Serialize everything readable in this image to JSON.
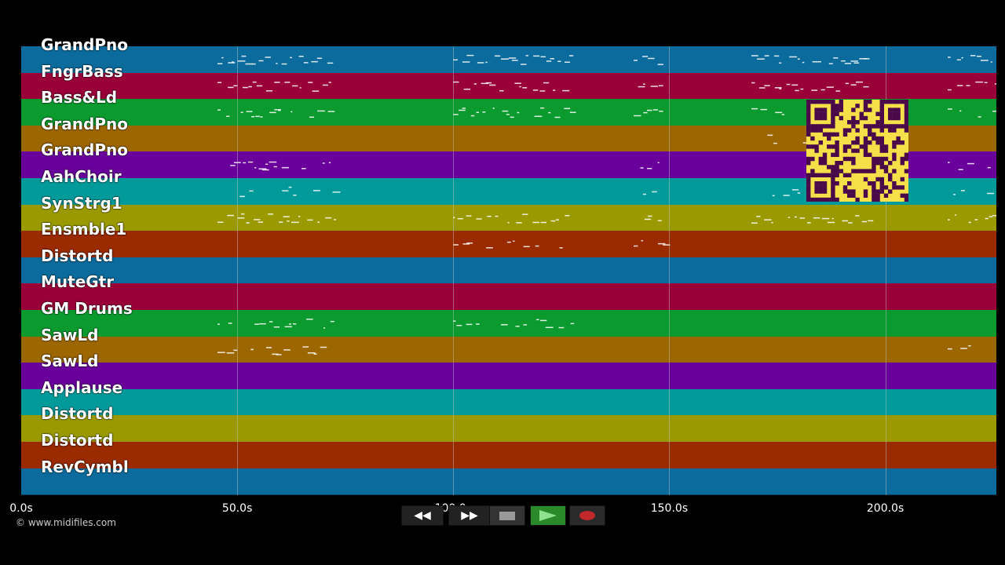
{
  "tracks": [
    {
      "name": "GrandPno",
      "color": "#0a6b9c"
    },
    {
      "name": "FngrBass",
      "color": "#9a0038"
    },
    {
      "name": "Bass&Ld",
      "color": "#0a9a2e"
    },
    {
      "name": "GrandPno",
      "color": "#9c6600"
    },
    {
      "name": "GrandPno",
      "color": "#6a009c"
    },
    {
      "name": "AahChoir",
      "color": "#009a9a"
    },
    {
      "name": "SynStrg1",
      "color": "#9a9a00"
    },
    {
      "name": "Ensmble1",
      "color": "#9a2a00"
    },
    {
      "name": "Distortd",
      "color": "#0a6b9c"
    },
    {
      "name": "MuteGtr",
      "color": "#9a0038"
    },
    {
      "name": "GM Drums",
      "color": "#0a9a2e"
    },
    {
      "name": "SawLd",
      "color": "#9c6600"
    },
    {
      "name": "SawLd",
      "color": "#6a009c"
    },
    {
      "name": "Applause",
      "color": "#009a9a"
    },
    {
      "name": "Distortd",
      "color": "#9a9a00"
    },
    {
      "name": "Distortd",
      "color": "#9a2a00"
    },
    {
      "name": "RevCymbl",
      "color": "#0a6b9c"
    }
  ],
  "timeline": {
    "ticks": [
      "0.0s",
      "50.0s",
      "100.0s",
      "150.0s",
      "200.0s"
    ],
    "tick_seconds": [
      0,
      50,
      100,
      150,
      200
    ],
    "max_seconds": 225.7
  },
  "copyright": "© www.midifiles.com",
  "transport": {
    "rewind_icon": "rewind-icon",
    "forward_icon": "fast-forward-icon",
    "stop_icon": "stop-icon",
    "play_icon": "play-icon",
    "record_icon": "record-icon",
    "play_color": "#2a8a2a",
    "record_color": "#c0282a"
  },
  "qr_code": {
    "color": "#f5e04a",
    "fg": "#4a0a4a"
  }
}
